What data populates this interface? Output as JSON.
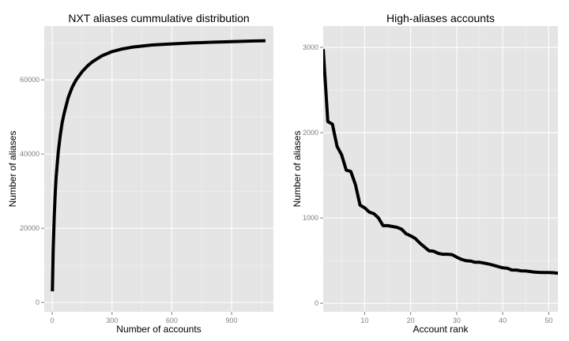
{
  "chart_data": [
    {
      "type": "line",
      "title": "NXT aliases cummulative distribution",
      "xlabel": "Number of accounts",
      "ylabel": "Number of aliases",
      "xlim": [
        -40,
        1110
      ],
      "ylim": [
        -2500,
        74500
      ],
      "xticks": [
        0,
        300,
        600,
        900
      ],
      "yticks": [
        0,
        20000,
        40000,
        60000
      ],
      "grid": true,
      "x": [
        1,
        5,
        10,
        15,
        20,
        30,
        40,
        50,
        60,
        80,
        100,
        120,
        150,
        180,
        200,
        250,
        300,
        350,
        400,
        450,
        500,
        600,
        700,
        800,
        900,
        1000,
        1070
      ],
      "y": [
        3000,
        14000,
        23000,
        29500,
        34000,
        40500,
        45000,
        48500,
        51000,
        55200,
        58000,
        60000,
        62200,
        63900,
        64800,
        66500,
        67600,
        68300,
        68800,
        69100,
        69400,
        69700,
        69950,
        70150,
        70300,
        70450,
        70550
      ]
    },
    {
      "type": "line",
      "title": "High-aliases accounts",
      "xlabel": "Account rank",
      "ylabel": "Number of aliases",
      "xlim": [
        1,
        52
      ],
      "ylim": [
        -100,
        3250
      ],
      "xticks": [
        10,
        20,
        30,
        40,
        50
      ],
      "yticks": [
        0,
        1000,
        2000,
        3000
      ],
      "grid": true,
      "x": [
        1,
        2,
        3,
        4,
        5,
        6,
        7,
        8,
        9,
        10,
        11,
        12,
        13,
        14,
        15,
        16,
        17,
        18,
        19,
        20,
        21,
        22,
        23,
        24,
        25,
        26,
        27,
        28,
        29,
        30,
        31,
        32,
        33,
        34,
        35,
        36,
        37,
        38,
        39,
        40,
        41,
        42,
        43,
        44,
        45,
        46,
        47,
        48,
        49,
        50,
        51,
        52
      ],
      "y": [
        2980,
        2130,
        2100,
        1840,
        1740,
        1560,
        1545,
        1390,
        1150,
        1120,
        1070,
        1050,
        1000,
        910,
        910,
        900,
        890,
        870,
        815,
        790,
        760,
        705,
        660,
        615,
        610,
        585,
        575,
        575,
        570,
        540,
        515,
        500,
        495,
        480,
        480,
        470,
        460,
        445,
        430,
        415,
        410,
        390,
        390,
        380,
        378,
        372,
        365,
        362,
        360,
        360,
        358,
        352
      ]
    }
  ]
}
